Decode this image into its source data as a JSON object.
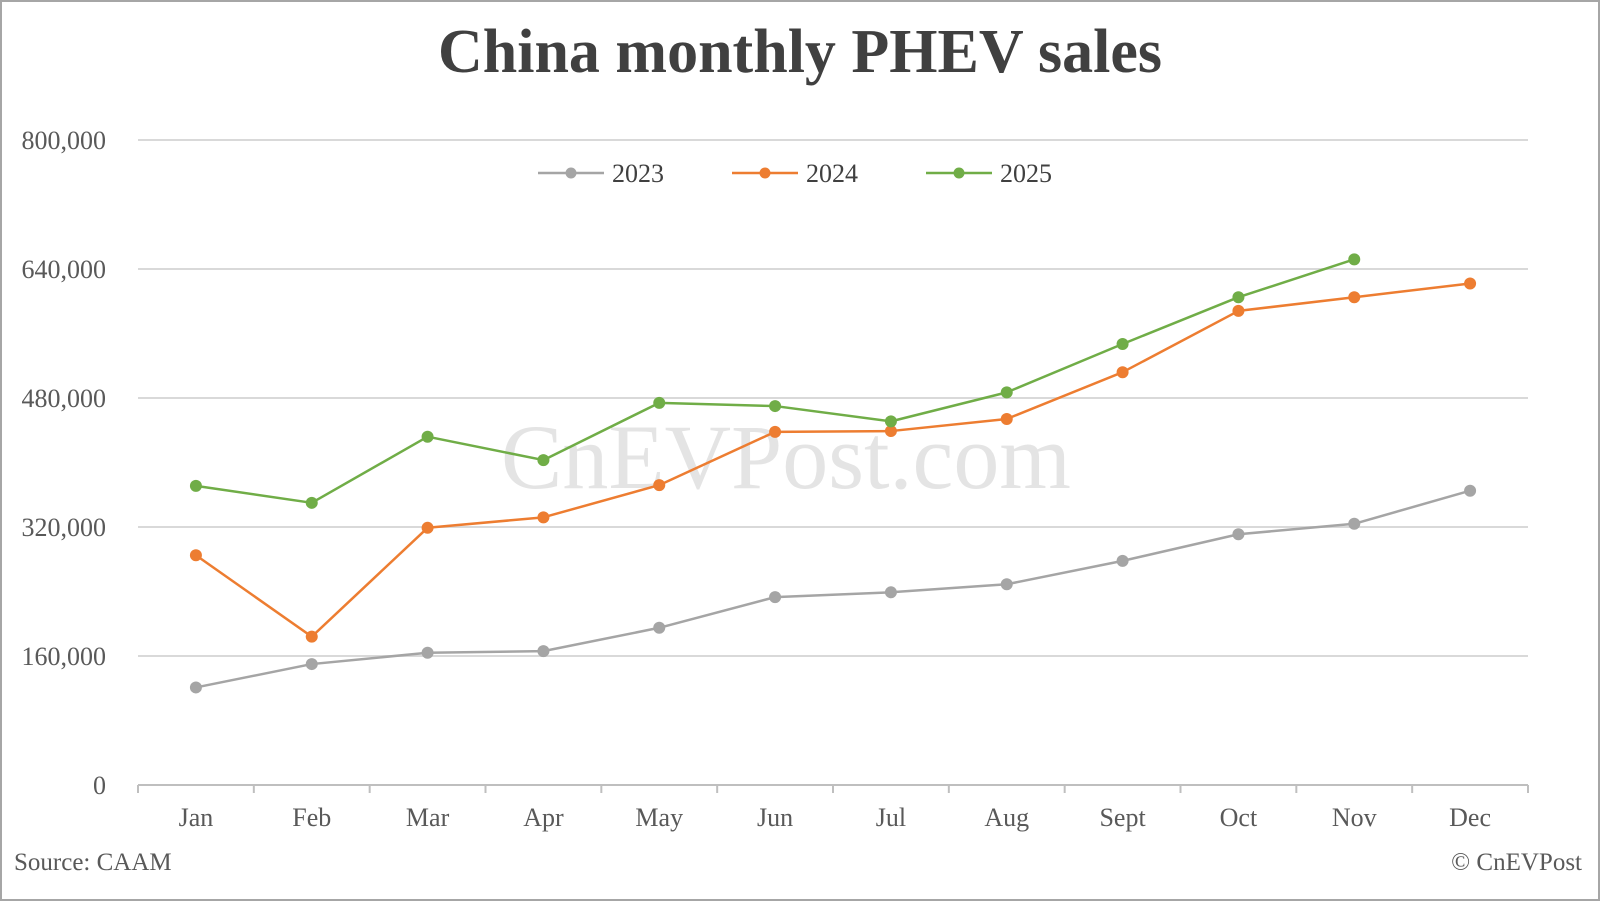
{
  "chart": {
    "title": "China monthly PHEV sales",
    "watermark": "CnEVPost.com",
    "source": "Source: CAAM",
    "copyright": "© CnEVPost",
    "legend": [
      {
        "label": "2023",
        "color": "#a5a5a5"
      },
      {
        "label": "2024",
        "color": "#ed7d31"
      },
      {
        "label": "2025",
        "color": "#70ad47"
      }
    ],
    "y_ticks": [
      "0",
      "160,000",
      "320,000",
      "480,000",
      "640,000",
      "800,000"
    ],
    "x_ticks": [
      "Jan",
      "Feb",
      "Mar",
      "Apr",
      "May",
      "Jun",
      "Jul",
      "Aug",
      "Sept",
      "Oct",
      "Nov",
      "Dec"
    ]
  },
  "chart_data": {
    "type": "line",
    "title": "China monthly PHEV sales",
    "xlabel": "",
    "ylabel": "",
    "categories": [
      "Jan",
      "Feb",
      "Mar",
      "Apr",
      "May",
      "Jun",
      "Jul",
      "Aug",
      "Sept",
      "Oct",
      "Nov",
      "Dec"
    ],
    "series": [
      {
        "name": "2023",
        "color": "#a5a5a5",
        "values": [
          121000,
          150000,
          164000,
          166000,
          195000,
          233000,
          239000,
          249000,
          278000,
          311000,
          324000,
          365000
        ]
      },
      {
        "name": "2024",
        "color": "#ed7d31",
        "values": [
          285000,
          184000,
          319000,
          332000,
          372000,
          438000,
          439000,
          454000,
          512000,
          588000,
          605000,
          622000
        ]
      },
      {
        "name": "2025",
        "color": "#70ad47",
        "values": [
          371000,
          350000,
          432000,
          403000,
          474000,
          470000,
          451000,
          487000,
          547000,
          605000,
          652000,
          null
        ]
      }
    ],
    "ylim": [
      0,
      800000
    ],
    "y_ticks": [
      0,
      160000,
      320000,
      480000,
      640000,
      800000
    ],
    "grid": true,
    "legend_position": "top",
    "annotations": [
      "CnEVPost.com (watermark)",
      "Source: CAAM",
      "© CnEVPost"
    ]
  }
}
